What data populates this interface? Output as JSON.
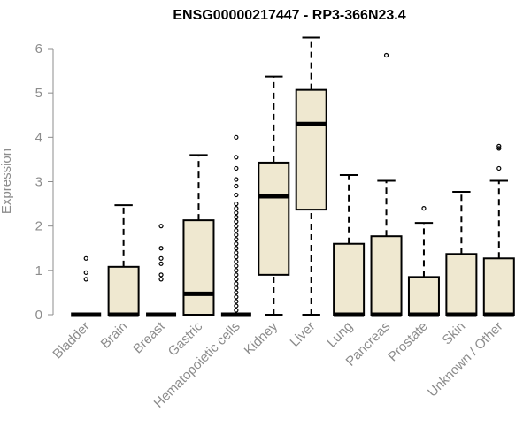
{
  "chart_data": {
    "type": "boxplot",
    "title": "ENSG00000217447 - RP3-366N23.4",
    "ylabel": "Expression",
    "ylim": [
      0,
      6.25
    ],
    "yticks": [
      0,
      1,
      2,
      3,
      4,
      5,
      6
    ],
    "yticks_text": [
      "0",
      "1",
      "2",
      "3",
      "4",
      "5",
      "6"
    ],
    "grid": false,
    "colors": {
      "box_fill": "#efe8d0",
      "axis": "#8c8c8c",
      "stroke": "#000000"
    },
    "categories": [
      "Bladder",
      "Brain",
      "Breast",
      "Gastric",
      "Hematopoietic cells",
      "Kidney",
      "Liver",
      "Lung",
      "Pancreas",
      "Prostate",
      "Skin",
      "Unknown / Other"
    ],
    "boxes": [
      {
        "q1": 0,
        "median": 0,
        "q3": 0,
        "whisker_low": 0,
        "whisker_high": 0,
        "outliers": [
          0.8,
          0.95,
          1.27
        ]
      },
      {
        "q1": 0,
        "median": 0,
        "q3": 1.08,
        "whisker_low": 0,
        "whisker_high": 2.47,
        "outliers": []
      },
      {
        "q1": 0,
        "median": 0,
        "q3": 0,
        "whisker_low": 0,
        "whisker_high": 0,
        "outliers": [
          0.8,
          0.9,
          1.15,
          1.27,
          1.5,
          2.0
        ]
      },
      {
        "q1": 0,
        "median": 0.47,
        "q3": 2.13,
        "whisker_low": 0,
        "whisker_high": 3.6,
        "outliers": []
      },
      {
        "q1": 0,
        "median": 0,
        "q3": 0,
        "whisker_low": 0,
        "whisker_high": 0,
        "outliers": [
          0.1,
          0.2,
          0.3,
          0.4,
          0.5,
          0.6,
          0.7,
          0.8,
          0.9,
          1.0,
          1.1,
          1.2,
          1.3,
          1.4,
          1.5,
          1.6,
          1.7,
          1.8,
          1.9,
          2.0,
          2.1,
          2.2,
          2.3,
          2.4,
          2.5,
          2.7,
          2.9,
          3.05,
          3.3,
          3.55,
          4.0
        ]
      },
      {
        "q1": 0.9,
        "median": 2.67,
        "q3": 3.43,
        "whisker_low": 0,
        "whisker_high": 5.37,
        "outliers": []
      },
      {
        "q1": 2.37,
        "median": 4.3,
        "q3": 5.07,
        "whisker_low": 0,
        "whisker_high": 6.25,
        "outliers": []
      },
      {
        "q1": 0,
        "median": 0,
        "q3": 1.6,
        "whisker_low": 0,
        "whisker_high": 3.15,
        "outliers": []
      },
      {
        "q1": 0,
        "median": 0,
        "q3": 1.77,
        "whisker_low": 0,
        "whisker_high": 3.02,
        "outliers": [
          5.85
        ]
      },
      {
        "q1": 0,
        "median": 0,
        "q3": 0.85,
        "whisker_low": 0,
        "whisker_high": 2.07,
        "outliers": [
          2.4
        ]
      },
      {
        "q1": 0,
        "median": 0,
        "q3": 1.37,
        "whisker_low": 0,
        "whisker_high": 2.77,
        "outliers": []
      },
      {
        "q1": 0,
        "median": 0,
        "q3": 1.27,
        "whisker_low": 0,
        "whisker_high": 3.02,
        "outliers": [
          3.3,
          3.75,
          3.8
        ]
      }
    ]
  }
}
